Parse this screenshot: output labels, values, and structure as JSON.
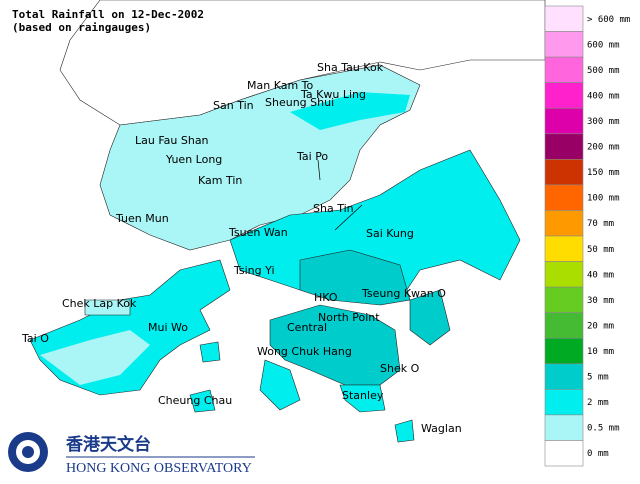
{
  "header": {
    "title": "Total Rainfall on 12-Dec-2002",
    "subtitle": "(based on raingauges)"
  },
  "places": [
    "Sha Tau Kok",
    "Man Kam To",
    "Ta Kwu Ling",
    "San Tin",
    "Sheung Shui",
    "Lau Fau Shan",
    "Yuen Long",
    "Tai Po",
    "Kam Tin",
    "Sha Tin",
    "Tuen Mun",
    "Tsuen Wan",
    "Sai Kung",
    "Tsing Yi",
    "HKO",
    "Tseung Kwan O",
    "Chek Lap Kok",
    "Mui Wo",
    "North Point",
    "Central",
    "Tai O",
    "Wong Chuk Hang",
    "Shek O",
    "Cheung Chau",
    "Stanley",
    "Waglan"
  ],
  "legend": {
    "items": [
      {
        "label": "> 600 mm",
        "color": "#ffe0ff"
      },
      {
        "label": "600 mm",
        "color": "#ff99ee"
      },
      {
        "label": "500 mm",
        "color": "#ff66dd"
      },
      {
        "label": "400 mm",
        "color": "#ff22cc"
      },
      {
        "label": "300 mm",
        "color": "#dd00aa"
      },
      {
        "label": "200 mm",
        "color": "#990066"
      },
      {
        "label": "150 mm",
        "color": "#cc3300"
      },
      {
        "label": "100 mm",
        "color": "#ff6600"
      },
      {
        "label": "70 mm",
        "color": "#ff9900"
      },
      {
        "label": "50 mm",
        "color": "#ffdd00"
      },
      {
        "label": "40 mm",
        "color": "#aadd00"
      },
      {
        "label": "30 mm",
        "color": "#66cc22"
      },
      {
        "label": "20 mm",
        "color": "#44bb33"
      },
      {
        "label": "10 mm",
        "color": "#00aa22"
      },
      {
        "label": "5 mm",
        "color": "#00cccc"
      },
      {
        "label": "2 mm",
        "color": "#00eeee"
      },
      {
        "label": "0.5 mm",
        "color": "#aaf5f5"
      },
      {
        "label": "0 mm",
        "color": "#ffffff"
      }
    ]
  },
  "logo": {
    "chinese": "香港天文台",
    "english": "HONG KONG OBSERVATORY"
  }
}
